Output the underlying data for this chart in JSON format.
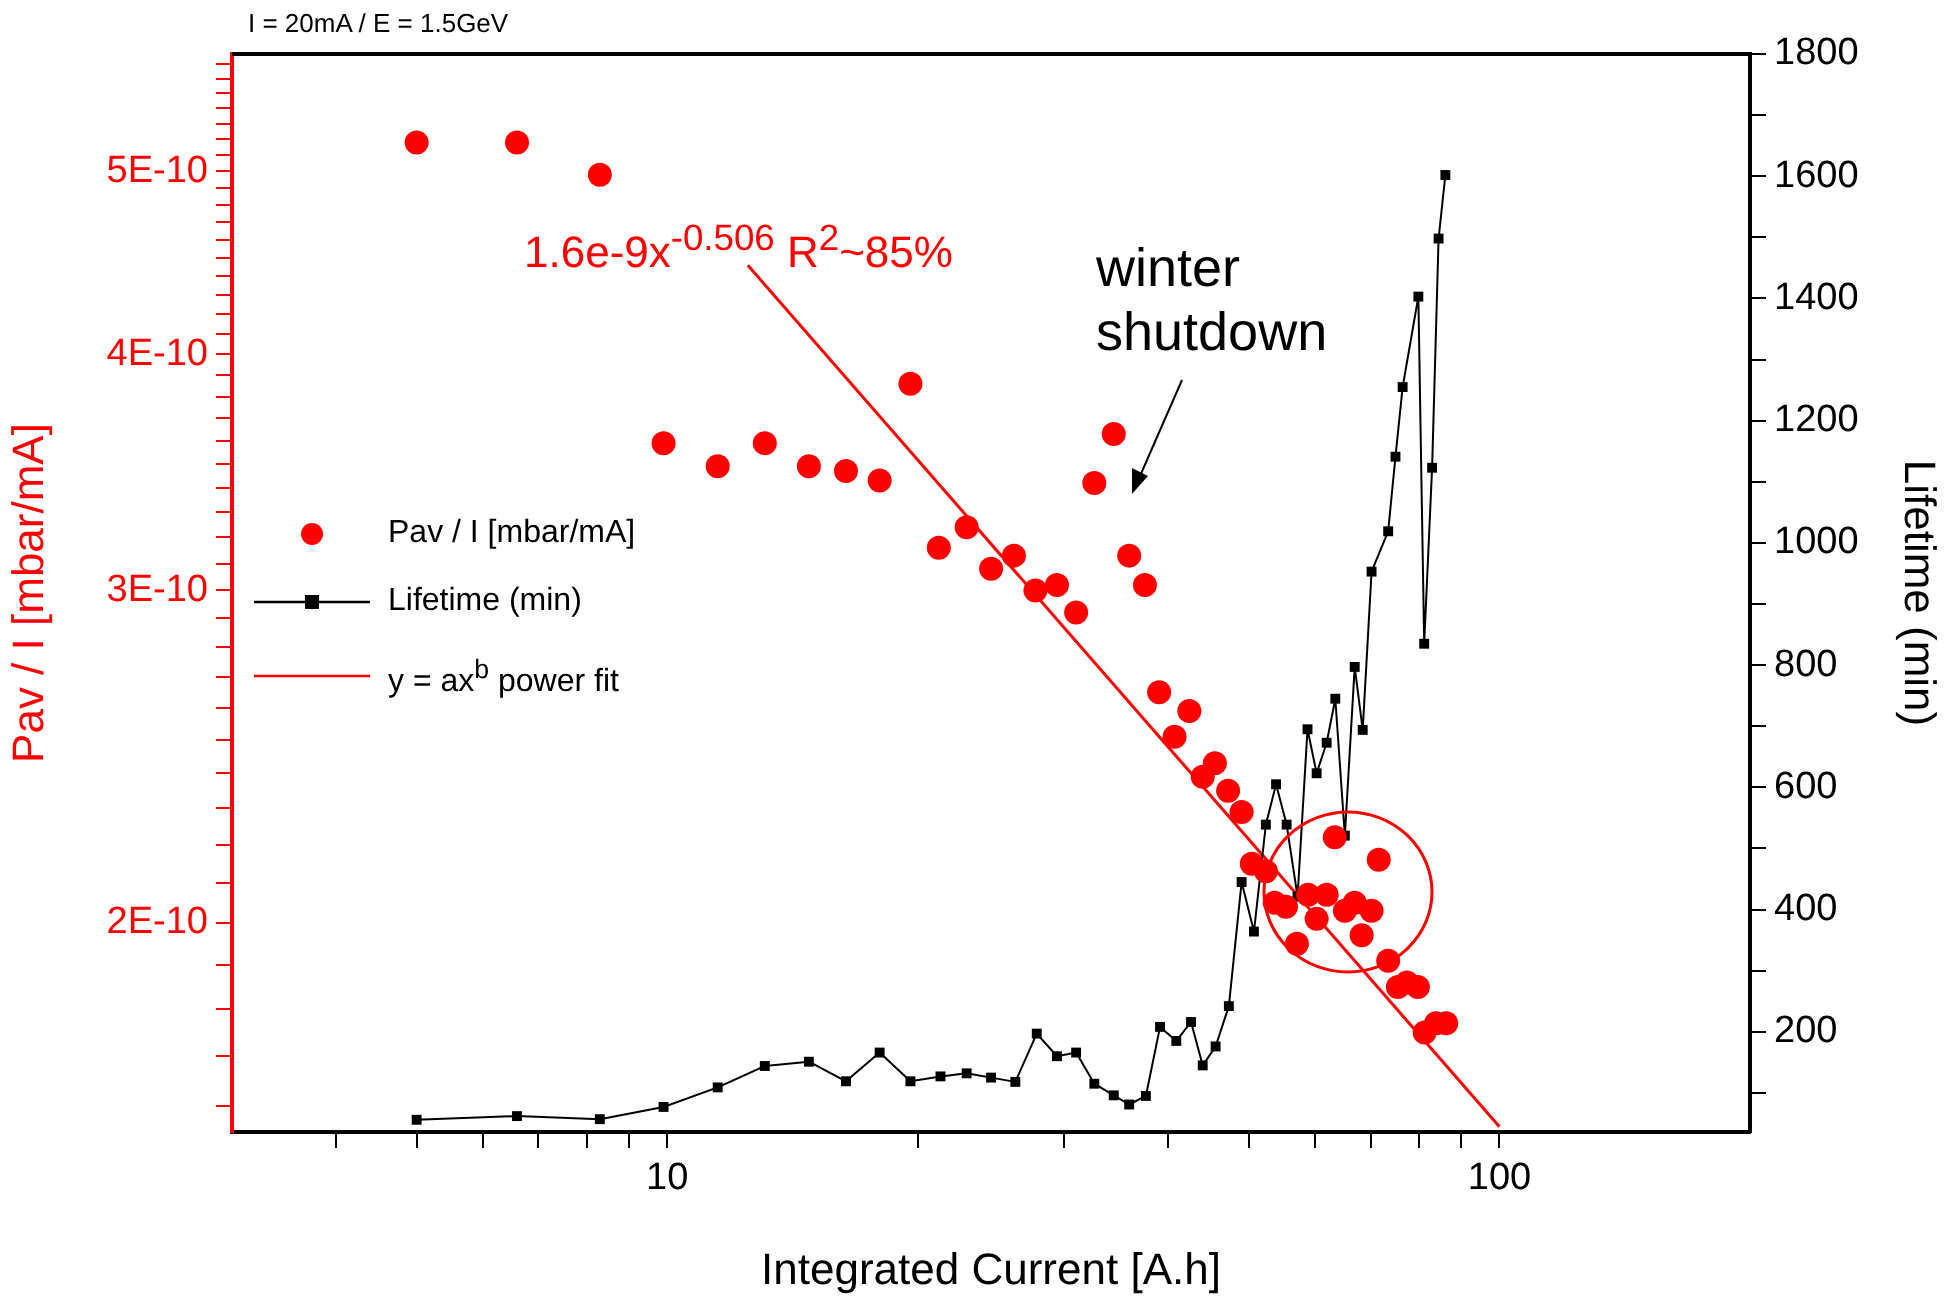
{
  "chart_data": {
    "type": "scatter",
    "title": "I = 20mA / E = 1.5GeV",
    "xlabel": "Integrated Current [A.h]",
    "ylabel": "Pav / I [mbar/mA]",
    "y2label": "Lifetime (min)",
    "log": "xy",
    "legend": "left",
    "grid": false,
    "xlim": [
      3,
      200
    ],
    "xticks": [
      {
        "value": 4,
        "label": null
      },
      {
        "value": 5,
        "label": null
      },
      {
        "value": 6,
        "label": null
      },
      {
        "value": 7,
        "label": null
      },
      {
        "value": 8,
        "label": null
      },
      {
        "value": 9,
        "label": null
      },
      10,
      {
        "value": 20,
        "label": null
      },
      {
        "value": 30,
        "label": null
      },
      {
        "value": 40,
        "label": null
      },
      {
        "value": 50,
        "label": null
      },
      {
        "value": 60,
        "label": null
      },
      {
        "value": 70,
        "label": null
      },
      {
        "value": 80,
        "label": null
      },
      {
        "value": 90,
        "label": null
      },
      100
    ],
    "ylim": [
      1.55e-10,
      5.77e-10
    ],
    "yticks": [
      {
        "value": 1.6e-10,
        "label": null
      },
      {
        "value": 1.7e-10,
        "label": null
      },
      {
        "value": 1.8e-10,
        "label": null
      },
      {
        "value": 1.9e-10,
        "label": null
      },
      {
        "value": 2e-10,
        "label": "2E-10"
      },
      {
        "value": 2.1e-10,
        "label": null
      },
      {
        "value": 2.2e-10,
        "label": null
      },
      {
        "value": 2.3e-10,
        "label": null
      },
      {
        "value": 2.4e-10,
        "label": null
      },
      {
        "value": 2.5e-10,
        "label": null
      },
      {
        "value": 2.6e-10,
        "label": null
      },
      {
        "value": 2.7e-10,
        "label": null
      },
      {
        "value": 2.8e-10,
        "label": null
      },
      {
        "value": 2.9e-10,
        "label": null
      },
      {
        "value": 3e-10,
        "label": "3E-10"
      },
      {
        "value": 3.1e-10,
        "label": null
      },
      {
        "value": 3.2e-10,
        "label": null
      },
      {
        "value": 3.3e-10,
        "label": null
      },
      {
        "value": 3.4e-10,
        "label": null
      },
      {
        "value": 3.5e-10,
        "label": null
      },
      {
        "value": 3.6e-10,
        "label": null
      },
      {
        "value": 3.7e-10,
        "label": null
      },
      {
        "value": 3.8e-10,
        "label": null
      },
      {
        "value": 3.9e-10,
        "label": null
      },
      {
        "value": 4e-10,
        "label": "4E-10"
      },
      {
        "value": 4.1e-10,
        "label": null
      },
      {
        "value": 4.2e-10,
        "label": null
      },
      {
        "value": 4.3e-10,
        "label": null
      },
      {
        "value": 4.4e-10,
        "label": null
      },
      {
        "value": 4.5e-10,
        "label": null
      },
      {
        "value": 4.6e-10,
        "label": null
      },
      {
        "value": 4.7e-10,
        "label": null
      },
      {
        "value": 4.8e-10,
        "label": null
      },
      {
        "value": 4.9e-10,
        "label": null
      },
      {
        "value": 5e-10,
        "label": "5E-10"
      },
      {
        "value": 5.1e-10,
        "label": null
      },
      {
        "value": 5.2e-10,
        "label": null
      },
      {
        "value": 5.3e-10,
        "label": null
      },
      {
        "value": 5.4e-10,
        "label": null
      },
      {
        "value": 5.5e-10,
        "label": null
      },
      {
        "value": 5.6e-10,
        "label": null
      },
      {
        "value": 5.7e-10,
        "label": null
      }
    ],
    "y2lim": [
      36,
      1800
    ],
    "y2ticks": [
      {
        "value": 100,
        "label": null
      },
      200,
      {
        "value": 300,
        "label": null
      },
      400,
      {
        "value": 500,
        "label": null
      },
      600,
      {
        "value": 700,
        "label": null
      },
      800,
      {
        "value": 900,
        "label": null
      },
      1000,
      {
        "value": 1100,
        "label": null
      },
      1200,
      {
        "value": 1300,
        "label": null
      },
      1400,
      {
        "value": 1500,
        "label": null
      },
      1600,
      {
        "value": 1700,
        "label": null
      },
      1800
    ],
    "annotations": [
      "1.6e-9x$^{-0.506}$ R$^{2}$~85%",
      "winter shutdown"
    ],
    "series": [
      {
        "name": "Pav / I [mbar/mA]",
        "type": "scatter",
        "marker": "circle",
        "color": "#ff0000",
        "x": [
          5.0,
          6.6,
          8.3,
          9.9,
          11.5,
          13.1,
          14.8,
          16.4,
          18.0,
          19.6,
          21.2,
          22.9,
          24.5,
          26.1,
          27.7,
          29.4,
          31.0,
          32.6,
          34.4,
          35.9,
          37.5,
          39.0,
          40.7,
          42.4,
          44.0,
          45.5,
          47.2,
          49.0,
          50.4,
          52.4,
          53.7,
          55.4,
          57.1,
          58.9,
          60.3,
          62.0,
          63.4,
          65.2,
          67.0,
          68.3,
          70.2,
          71.6,
          73.5,
          75.5,
          77.4,
          79.8,
          81.3,
          83.9,
          86.3
        ],
        "values": [
          5.18e-10,
          5.18e-10,
          4.98e-10,
          3.59e-10,
          3.49e-10,
          3.59e-10,
          3.49e-10,
          3.47e-10,
          3.43e-10,
          3.86e-10,
          3.16e-10,
          3.24e-10,
          3.08e-10,
          3.13e-10,
          3e-10,
          3.02e-10,
          2.92e-10,
          3.42e-10,
          3.63e-10,
          3.13e-10,
          3.02e-10,
          2.65e-10,
          2.51e-10,
          2.59e-10,
          2.39e-10,
          2.43e-10,
          2.35e-10,
          2.29e-10,
          2.15e-10,
          2.13e-10,
          2.05e-10,
          2.04e-10,
          1.95e-10,
          2.07e-10,
          2.01e-10,
          2.07e-10,
          2.22e-10,
          2.03e-10,
          2.05e-10,
          1.97e-10,
          2.03e-10,
          2.16e-10,
          1.91e-10,
          1.85e-10,
          1.86e-10,
          1.85e-10,
          1.75e-10,
          1.77e-10,
          1.77e-10
        ]
      },
      {
        "name": "Lifetime (min)",
        "type": "line",
        "axis": "y2",
        "marker": "square",
        "color": "#000000",
        "x": [
          5.0,
          6.6,
          8.3,
          9.9,
          11.5,
          13.1,
          14.8,
          16.4,
          18.0,
          19.6,
          21.3,
          22.9,
          24.5,
          26.2,
          27.8,
          29.4,
          31.0,
          32.6,
          34.4,
          35.9,
          37.6,
          39.1,
          40.9,
          42.6,
          44.0,
          45.6,
          47.3,
          49.0,
          50.7,
          52.4,
          53.9,
          55.5,
          57.2,
          58.8,
          60.3,
          62.0,
          63.5,
          65.2,
          67.0,
          68.5,
          70.2,
          73.5,
          75.0,
          76.5,
          79.9,
          81.2,
          83.0,
          84.5,
          86.1
        ],
        "values": [
          56,
          62,
          57,
          77,
          109,
          144,
          151,
          119,
          166,
          119,
          127,
          132,
          125,
          118,
          197,
          160,
          166,
          115,
          96,
          81,
          95,
          208,
          185,
          216,
          145,
          176,
          242,
          445,
          364,
          539,
          605,
          539,
          421,
          695,
          623,
          673,
          745,
          521,
          797,
          694,
          953,
          1019,
          1141,
          1255,
          1403,
          835,
          1123,
          1498,
          1602
        ]
      },
      {
        "name": "y = ax$^{b}$ power fit",
        "type": "line",
        "marker": "none",
        "color": "#ff0000",
        "x": [
          12.5,
          100
        ],
        "values": [
          4.46e-10,
          1.56e-10
        ]
      }
    ]
  }
}
